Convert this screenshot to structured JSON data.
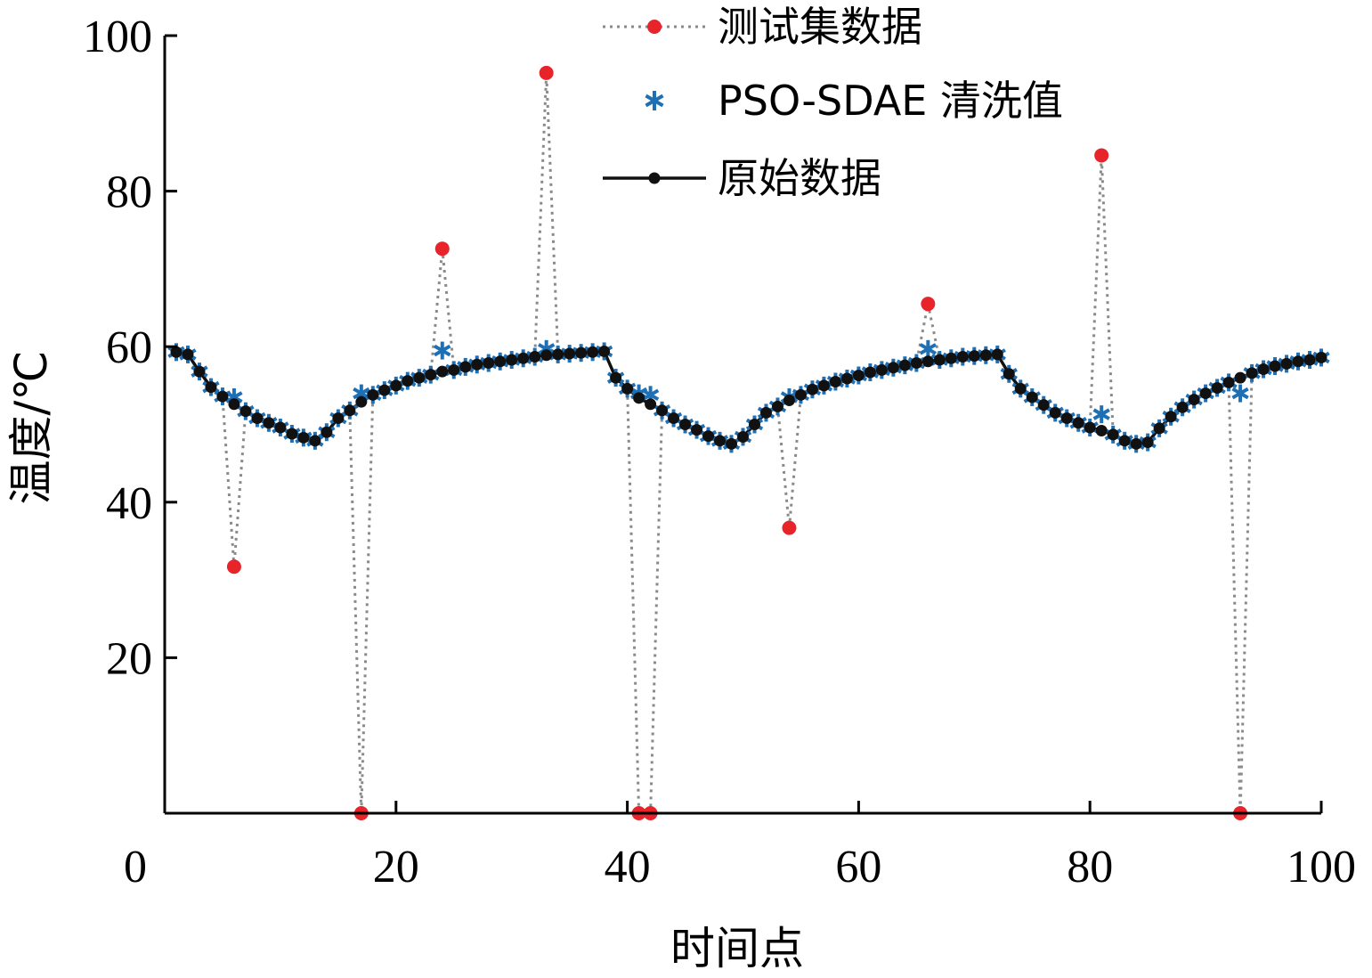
{
  "chart_data": {
    "type": "line",
    "xlabel": "时间点",
    "ylabel": "温度/℃",
    "xlim": [
      0,
      100
    ],
    "ylim": [
      0,
      100
    ],
    "xticks": [
      0,
      20,
      40,
      60,
      80,
      100
    ],
    "yticks": [
      20,
      40,
      60,
      80,
      100
    ],
    "legend_position": "top",
    "x": [
      1,
      2,
      3,
      4,
      5,
      6,
      7,
      8,
      9,
      10,
      11,
      12,
      13,
      14,
      15,
      16,
      17,
      18,
      19,
      20,
      21,
      22,
      23,
      24,
      25,
      26,
      27,
      28,
      29,
      30,
      31,
      32,
      33,
      34,
      35,
      36,
      37,
      38,
      39,
      40,
      41,
      42,
      43,
      44,
      45,
      46,
      47,
      48,
      49,
      50,
      51,
      52,
      53,
      54,
      55,
      56,
      57,
      58,
      59,
      60,
      61,
      62,
      63,
      64,
      65,
      66,
      67,
      68,
      69,
      70,
      71,
      72,
      73,
      74,
      75,
      76,
      77,
      78,
      79,
      80,
      81,
      82,
      83,
      84,
      85,
      86,
      87,
      88,
      89,
      90,
      91,
      92,
      93,
      94,
      95,
      96,
      97,
      98,
      99,
      100
    ],
    "series": [
      {
        "name": "测试集数据",
        "color": "#e8242b",
        "line_style": "dotted",
        "line_color": "#8a8a8a",
        "values": [
          59.3,
          59.0,
          56.8,
          54.8,
          53.6,
          31.7,
          51.7,
          50.8,
          50.2,
          49.6,
          48.8,
          48.3,
          47.9,
          49.0,
          50.8,
          51.8,
          0.0,
          53.8,
          54.4,
          55.0,
          55.6,
          56.0,
          56.4,
          72.6,
          57.0,
          57.4,
          57.7,
          57.9,
          58.1,
          58.3,
          58.5,
          58.7,
          95.2,
          59.0,
          59.1,
          59.2,
          59.3,
          59.4,
          56.0,
          54.6,
          0.0,
          0.0,
          51.8,
          50.8,
          50.0,
          49.3,
          48.5,
          47.9,
          47.5,
          48.4,
          50.0,
          51.5,
          52.3,
          36.7,
          53.8,
          54.5,
          55.0,
          55.5,
          55.9,
          56.3,
          56.7,
          57.0,
          57.3,
          57.6,
          57.9,
          65.5,
          58.3,
          58.5,
          58.7,
          58.8,
          58.9,
          59.0,
          56.5,
          54.6,
          53.5,
          52.5,
          51.5,
          50.8,
          50.2,
          49.6,
          84.6,
          48.7,
          47.9,
          47.5,
          47.7,
          49.5,
          51.0,
          52.2,
          53.2,
          54.0,
          54.7,
          55.4,
          0.0,
          56.6,
          57.1,
          57.5,
          57.8,
          58.1,
          58.3,
          58.6
        ]
      },
      {
        "name": "PSO-SDAE 清洗值",
        "color": "#1f6fb4",
        "marker": "asterisk",
        "values": [
          59.3,
          59.0,
          56.8,
          54.8,
          53.6,
          53.5,
          51.7,
          50.8,
          50.2,
          49.6,
          48.8,
          48.3,
          47.9,
          49.0,
          50.8,
          51.8,
          54.0,
          53.8,
          54.4,
          55.0,
          55.6,
          56.0,
          56.4,
          59.5,
          57.0,
          57.4,
          57.7,
          57.9,
          58.1,
          58.3,
          58.5,
          58.7,
          59.7,
          59.0,
          59.1,
          59.2,
          59.3,
          59.4,
          56.0,
          54.6,
          54.0,
          53.8,
          51.8,
          50.8,
          50.0,
          49.3,
          48.5,
          47.9,
          47.5,
          48.4,
          50.0,
          51.5,
          52.3,
          53.5,
          53.8,
          54.5,
          55.0,
          55.5,
          55.9,
          56.3,
          56.7,
          57.0,
          57.3,
          57.6,
          57.9,
          59.7,
          58.3,
          58.5,
          58.7,
          58.8,
          58.9,
          59.0,
          56.5,
          54.6,
          53.5,
          52.5,
          51.5,
          50.8,
          50.2,
          49.6,
          51.3,
          48.7,
          47.9,
          47.5,
          47.7,
          49.5,
          51.0,
          52.2,
          53.2,
          54.0,
          54.7,
          55.4,
          54.0,
          56.6,
          57.1,
          57.5,
          57.8,
          58.1,
          58.3,
          58.6
        ]
      },
      {
        "name": "原始数据",
        "color": "#111111",
        "line_style": "solid",
        "values": [
          59.3,
          59.0,
          56.8,
          54.8,
          53.6,
          52.6,
          51.7,
          50.8,
          50.2,
          49.6,
          48.8,
          48.3,
          47.9,
          49.0,
          50.8,
          51.8,
          52.9,
          53.8,
          54.4,
          55.0,
          55.6,
          56.0,
          56.4,
          56.8,
          57.0,
          57.4,
          57.7,
          57.9,
          58.1,
          58.3,
          58.5,
          58.7,
          58.9,
          59.0,
          59.1,
          59.2,
          59.3,
          59.4,
          56.0,
          54.6,
          53.4,
          52.6,
          51.8,
          50.8,
          50.0,
          49.3,
          48.5,
          47.9,
          47.5,
          48.4,
          50.0,
          51.5,
          52.3,
          53.1,
          53.8,
          54.5,
          55.0,
          55.5,
          55.9,
          56.3,
          56.7,
          57.0,
          57.3,
          57.6,
          57.9,
          58.1,
          58.3,
          58.5,
          58.7,
          58.8,
          58.9,
          59.0,
          56.5,
          54.6,
          53.5,
          52.5,
          51.5,
          50.8,
          50.2,
          49.6,
          49.2,
          48.7,
          47.9,
          47.5,
          47.7,
          49.5,
          51.0,
          52.2,
          53.2,
          54.0,
          54.7,
          55.4,
          56.0,
          56.6,
          57.1,
          57.5,
          57.8,
          58.1,
          58.3,
          58.6
        ]
      }
    ]
  }
}
